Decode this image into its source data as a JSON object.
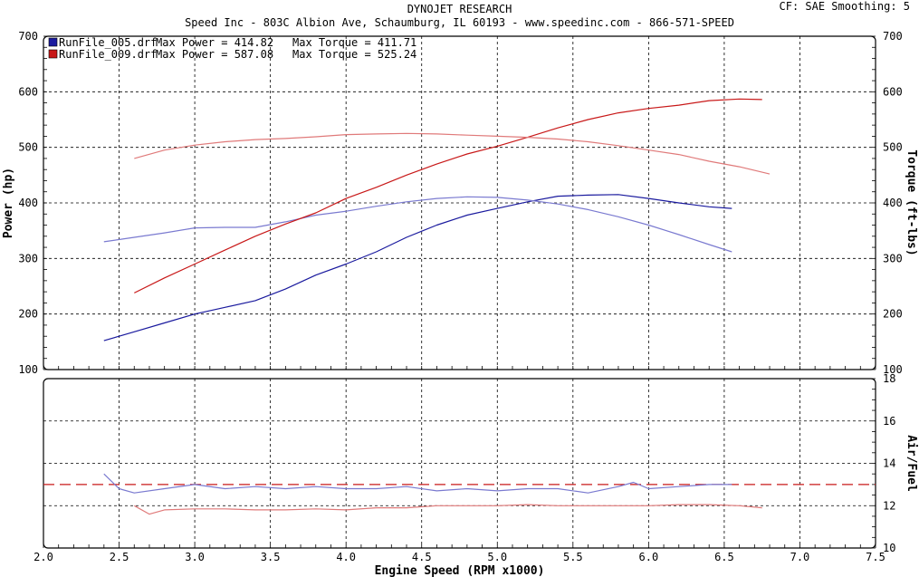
{
  "header": {
    "title": "DYNOJET RESEARCH",
    "subtitle": "Speed Inc - 803C Albion Ave, Schaumburg, IL 60193 - www.speedinc.com - 866-571-SPEED",
    "settings": "CF: SAE  Smoothing: 5"
  },
  "colors": {
    "run005": "#1a1a9e",
    "run005_light": "#7a7ad0",
    "run009": "#c81818",
    "run009_light": "#e07a7a"
  },
  "chart_data": [
    {
      "type": "line",
      "panel": "power-torque",
      "xlabel": "Engine Speed (RPM x1000)",
      "ylabel": "Power (hp)",
      "y2label": "Torque (ft-lbs)",
      "xlim": [
        2.0,
        7.5
      ],
      "ylim": [
        100,
        700
      ],
      "y2lim": [
        100,
        700
      ],
      "x_ticks": [
        "2.0",
        "2.5",
        "3.0",
        "3.5",
        "4.0",
        "4.5",
        "5.0",
        "5.5",
        "6.0",
        "6.5",
        "7.0",
        "7.5"
      ],
      "y_ticks": [
        "100",
        "200",
        "300",
        "400",
        "500",
        "600",
        "700"
      ],
      "grid": true,
      "legend_position": "top-left",
      "legend": [
        {
          "file": "RunFile_005.drf",
          "max_power_label": "Max Power = 414.82",
          "max_torque_label": "Max Torque = 411.71",
          "color": "#1a1a9e"
        },
        {
          "file": "RunFile_009.drf",
          "max_power_label": "Max Power = 587.08",
          "max_torque_label": "Max Torque = 525.24",
          "color": "#c81818"
        }
      ],
      "series": [
        {
          "name": "RunFile_005.drf",
          "measure": "power",
          "color": "#1a1a9e",
          "x": [
            2.4,
            2.6,
            2.8,
            3.0,
            3.2,
            3.4,
            3.6,
            3.8,
            4.0,
            4.2,
            4.4,
            4.6,
            4.8,
            5.0,
            5.2,
            5.4,
            5.6,
            5.8,
            6.0,
            6.2,
            6.4,
            6.55
          ],
          "y": [
            152,
            168,
            184,
            200,
            212,
            224,
            245,
            270,
            290,
            312,
            338,
            360,
            378,
            390,
            402,
            412,
            414,
            415,
            408,
            400,
            393,
            390
          ]
        },
        {
          "name": "RunFile_005.drf",
          "measure": "torque",
          "color": "#7a7ad0",
          "x": [
            2.4,
            2.6,
            2.8,
            3.0,
            3.2,
            3.4,
            3.6,
            3.8,
            4.0,
            4.2,
            4.4,
            4.6,
            4.8,
            5.0,
            5.2,
            5.4,
            5.6,
            5.8,
            6.0,
            6.2,
            6.4,
            6.55
          ],
          "y": [
            330,
            338,
            346,
            355,
            356,
            356,
            366,
            378,
            385,
            394,
            402,
            408,
            411,
            410,
            405,
            398,
            388,
            375,
            360,
            343,
            325,
            312
          ]
        },
        {
          "name": "RunFile_009.drf",
          "measure": "power",
          "color": "#c81818",
          "x": [
            2.6,
            2.8,
            3.0,
            3.2,
            3.4,
            3.6,
            3.8,
            4.0,
            4.2,
            4.4,
            4.6,
            4.8,
            5.0,
            5.2,
            5.4,
            5.6,
            5.8,
            6.0,
            6.2,
            6.4,
            6.6,
            6.75
          ],
          "y": [
            238,
            265,
            290,
            315,
            340,
            362,
            382,
            408,
            428,
            450,
            470,
            488,
            502,
            518,
            535,
            550,
            562,
            570,
            576,
            584,
            587,
            586
          ]
        },
        {
          "name": "RunFile_009.drf",
          "measure": "torque",
          "color": "#e07a7a",
          "x": [
            2.6,
            2.8,
            3.0,
            3.2,
            3.4,
            3.6,
            3.8,
            4.0,
            4.2,
            4.4,
            4.6,
            4.8,
            5.0,
            5.2,
            5.4,
            5.6,
            5.8,
            6.0,
            6.2,
            6.4,
            6.6,
            6.8
          ],
          "y": [
            480,
            495,
            504,
            510,
            514,
            516,
            519,
            523,
            524,
            525,
            524,
            522,
            520,
            518,
            515,
            510,
            503,
            495,
            487,
            475,
            465,
            452
          ]
        }
      ]
    },
    {
      "type": "line",
      "panel": "air-fuel",
      "xlabel": "Engine Speed (RPM x1000)",
      "y2label": "Air/Fuel",
      "xlim": [
        2.0,
        7.5
      ],
      "y2lim": [
        10,
        18
      ],
      "x_ticks": [
        "2.0",
        "2.5",
        "3.0",
        "3.5",
        "4.0",
        "4.5",
        "5.0",
        "5.5",
        "6.0",
        "6.5",
        "7.0",
        "7.5"
      ],
      "y2_ticks": [
        "10",
        "12",
        "14",
        "16",
        "18"
      ],
      "grid": true,
      "reference_line": {
        "y": 13.0,
        "style": "dashed",
        "color": "#c81818"
      },
      "series": [
        {
          "name": "RunFile_005.drf",
          "measure": "air-fuel",
          "color": "#7a7ad0",
          "x": [
            2.4,
            2.5,
            2.6,
            2.8,
            3.0,
            3.2,
            3.4,
            3.6,
            3.8,
            4.0,
            4.2,
            4.4,
            4.6,
            4.8,
            5.0,
            5.2,
            5.4,
            5.6,
            5.8,
            5.9,
            6.0,
            6.2,
            6.4,
            6.55
          ],
          "y": [
            13.5,
            12.8,
            12.6,
            12.8,
            13.0,
            12.8,
            12.9,
            12.8,
            12.9,
            12.8,
            12.8,
            12.9,
            12.7,
            12.8,
            12.7,
            12.8,
            12.8,
            12.6,
            12.9,
            13.1,
            12.8,
            12.9,
            13.0,
            13.0
          ]
        },
        {
          "name": "RunFile_009.drf",
          "measure": "air-fuel",
          "color": "#e07a7a",
          "x": [
            2.6,
            2.7,
            2.8,
            3.0,
            3.2,
            3.4,
            3.6,
            3.8,
            4.0,
            4.2,
            4.4,
            4.6,
            4.8,
            5.0,
            5.2,
            5.4,
            5.6,
            5.8,
            6.0,
            6.2,
            6.4,
            6.6,
            6.75
          ],
          "y": [
            12.0,
            11.6,
            11.8,
            11.85,
            11.85,
            11.8,
            11.8,
            11.85,
            11.8,
            11.9,
            11.9,
            12.0,
            12.0,
            12.0,
            12.05,
            12.0,
            12.0,
            12.0,
            12.0,
            12.05,
            12.05,
            12.0,
            11.9
          ]
        }
      ]
    }
  ]
}
